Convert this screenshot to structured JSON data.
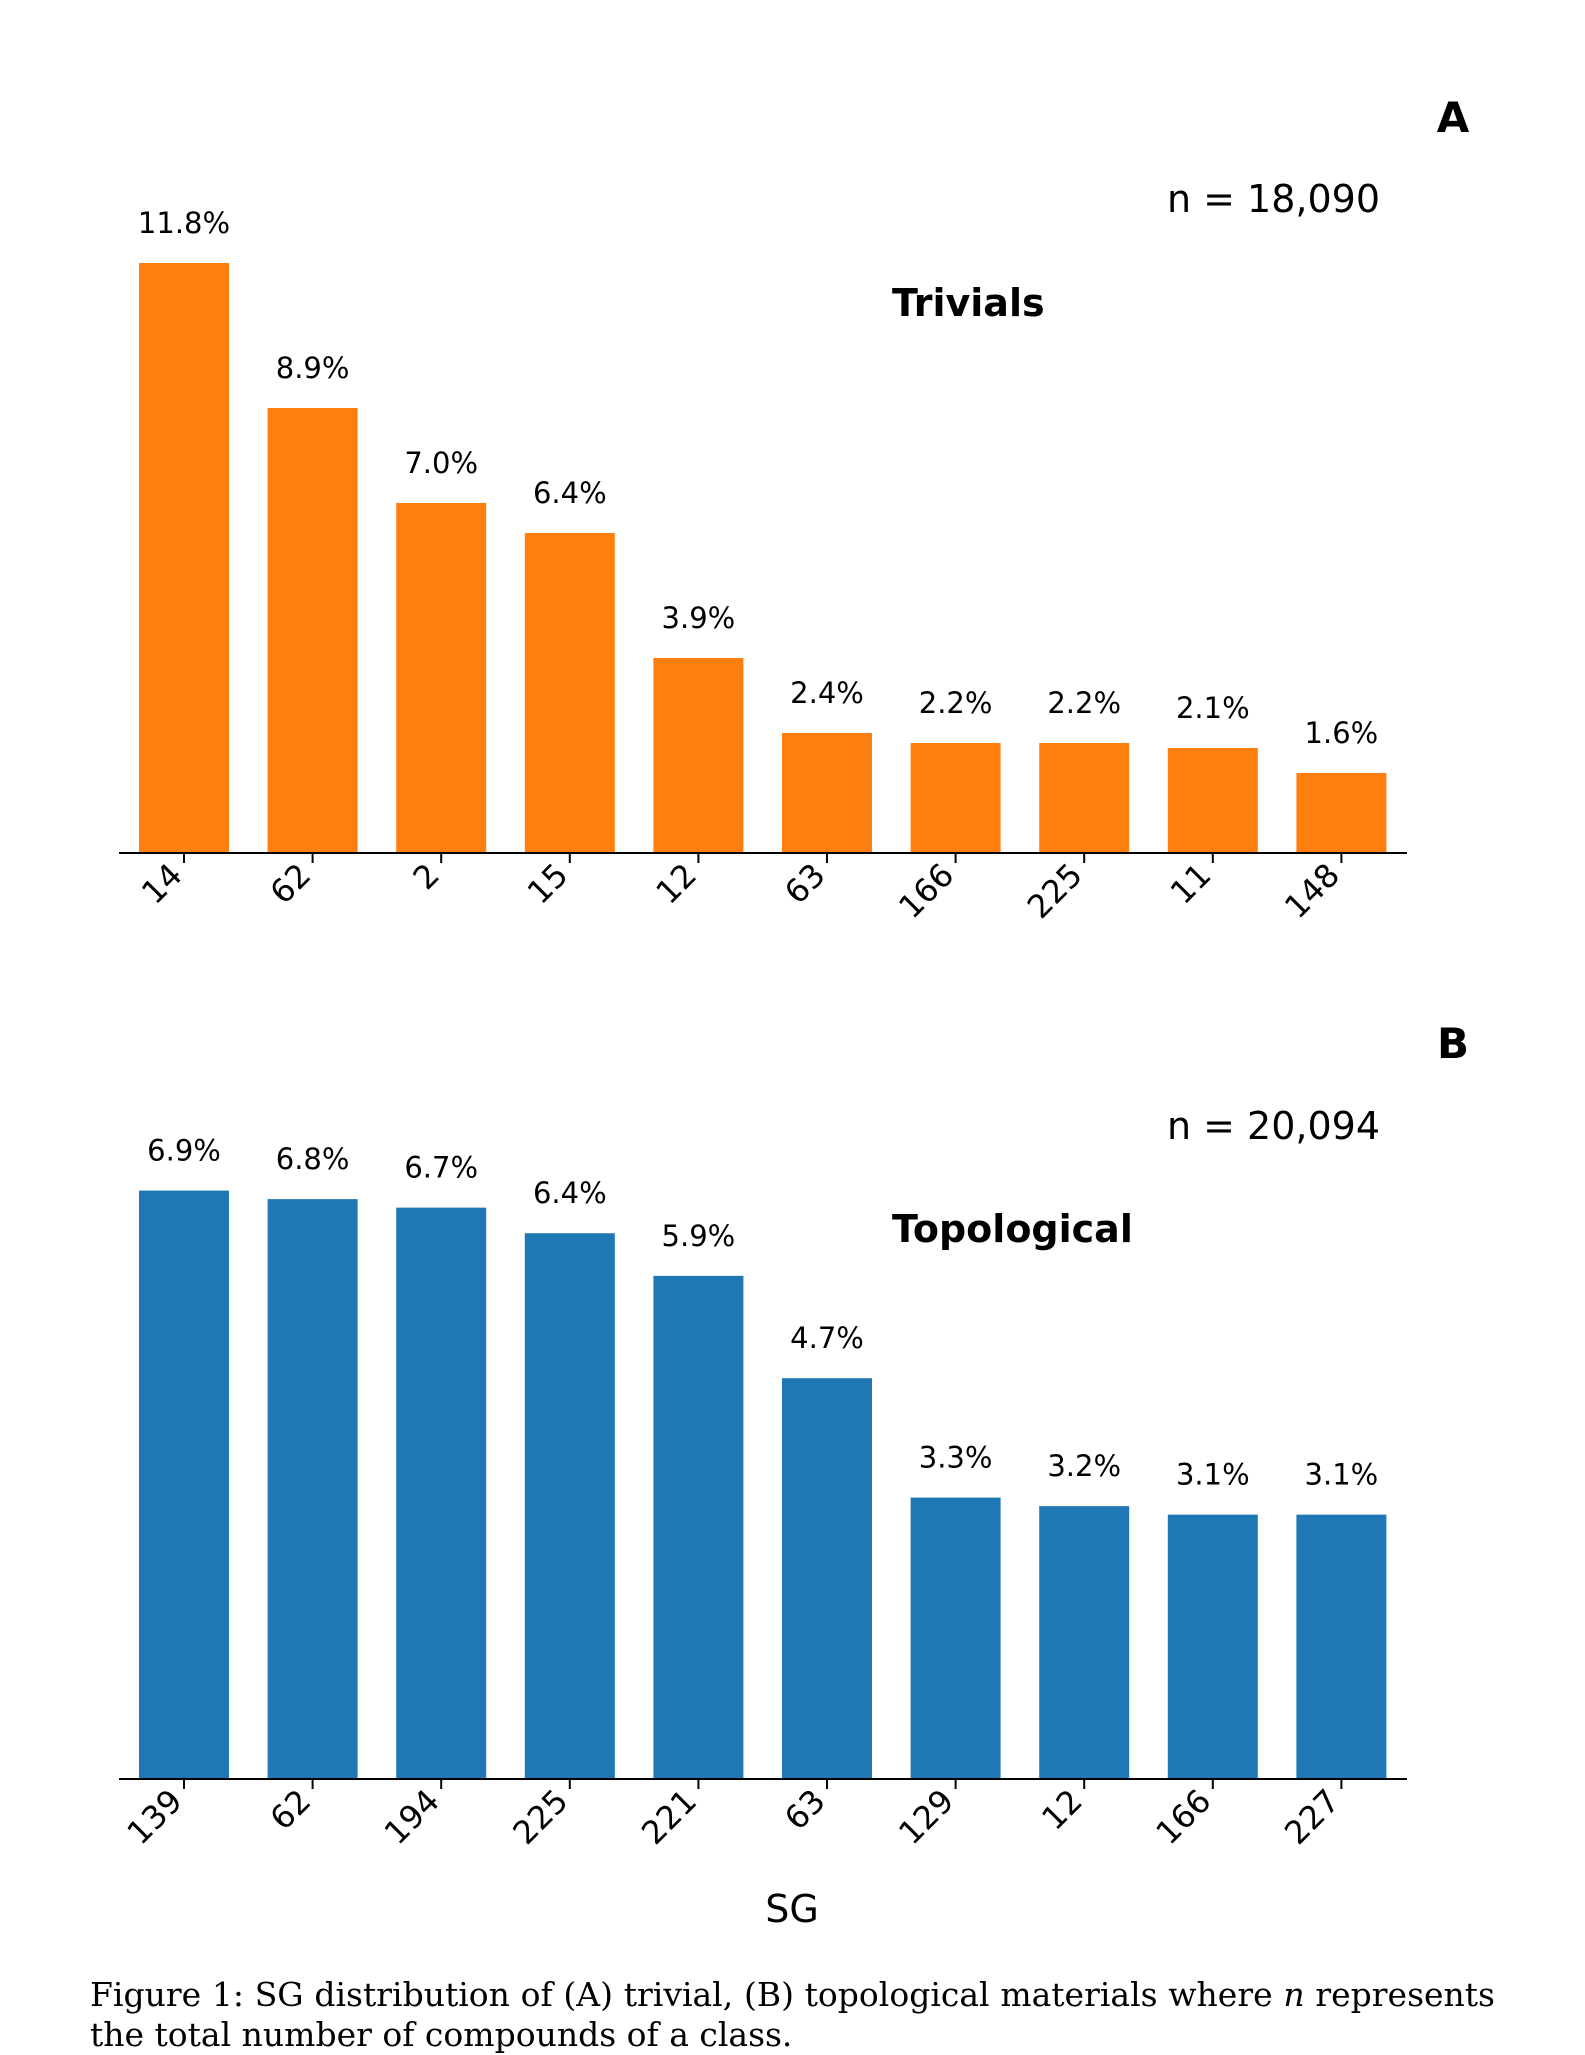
{
  "caption": {
    "prefix": "Figure 1: SG distribution of (A) trivial, (B) topological materials where ",
    "var": "n",
    "suffix": " represents the total number of compounds of a class."
  },
  "xlabel": "SG",
  "chart_data": [
    {
      "type": "bar",
      "panel_label": "A",
      "title": "Trivials",
      "annotation": "n = 18,090",
      "categories": [
        "14",
        "62",
        "2",
        "15",
        "12",
        "63",
        "166",
        "225",
        "11",
        "148"
      ],
      "values": [
        11.8,
        8.9,
        7.0,
        6.4,
        3.9,
        2.4,
        2.2,
        2.2,
        2.1,
        1.6
      ],
      "value_labels": [
        "11.8%",
        "8.9%",
        "7.0%",
        "6.4%",
        "3.9%",
        "2.4%",
        "2.2%",
        "2.2%",
        "2.1%",
        "1.6%"
      ],
      "color": "#ff7f0e",
      "xlabel": "",
      "ylabel": "",
      "ylim": [
        0,
        12.3
      ],
      "grid": false,
      "y_axis_visible": false
    },
    {
      "type": "bar",
      "panel_label": "B",
      "title": "Topological",
      "annotation": "n = 20,094",
      "categories": [
        "139",
        "62",
        "194",
        "225",
        "221",
        "63",
        "129",
        "12",
        "166",
        "227"
      ],
      "values": [
        6.9,
        6.8,
        6.7,
        6.4,
        5.9,
        4.7,
        3.3,
        3.2,
        3.1,
        3.1
      ],
      "value_labels": [
        "6.9%",
        "6.8%",
        "6.7%",
        "6.4%",
        "5.9%",
        "4.7%",
        "3.3%",
        "3.2%",
        "3.1%",
        "3.1%"
      ],
      "color": "#1f77b4",
      "xlabel": "SG",
      "ylabel": "",
      "ylim": [
        0,
        7.2
      ],
      "grid": false,
      "y_axis_visible": false
    }
  ]
}
